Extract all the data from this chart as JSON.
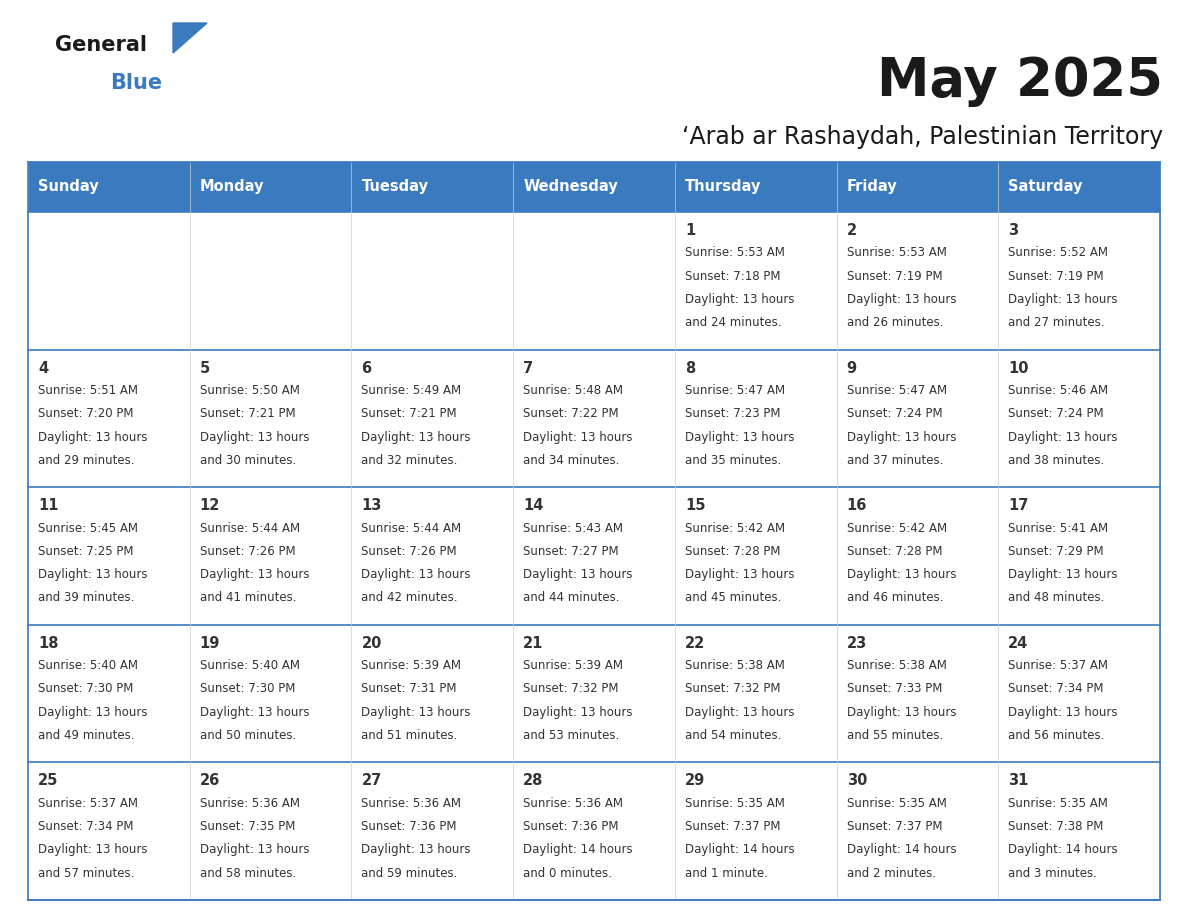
{
  "title": "May 2025",
  "subtitle": "‘Arab ar Rashaydah, Palestinian Territory",
  "header_bg": "#3a7abf",
  "header_text_color": "#ffffff",
  "cell_bg_light": "#efefef",
  "cell_bg_white": "#ffffff",
  "row_sep_color": "#3a7abf",
  "text_color": "#333333",
  "day_headers": [
    "Sunday",
    "Monday",
    "Tuesday",
    "Wednesday",
    "Thursday",
    "Friday",
    "Saturday"
  ],
  "days": [
    {
      "day": 1,
      "col": 4,
      "row": 0,
      "sunrise": "5:53 AM",
      "sunset": "7:18 PM",
      "daylight": "13 hours and 24 minutes."
    },
    {
      "day": 2,
      "col": 5,
      "row": 0,
      "sunrise": "5:53 AM",
      "sunset": "7:19 PM",
      "daylight": "13 hours and 26 minutes."
    },
    {
      "day": 3,
      "col": 6,
      "row": 0,
      "sunrise": "5:52 AM",
      "sunset": "7:19 PM",
      "daylight": "13 hours and 27 minutes."
    },
    {
      "day": 4,
      "col": 0,
      "row": 1,
      "sunrise": "5:51 AM",
      "sunset": "7:20 PM",
      "daylight": "13 hours and 29 minutes."
    },
    {
      "day": 5,
      "col": 1,
      "row": 1,
      "sunrise": "5:50 AM",
      "sunset": "7:21 PM",
      "daylight": "13 hours and 30 minutes."
    },
    {
      "day": 6,
      "col": 2,
      "row": 1,
      "sunrise": "5:49 AM",
      "sunset": "7:21 PM",
      "daylight": "13 hours and 32 minutes."
    },
    {
      "day": 7,
      "col": 3,
      "row": 1,
      "sunrise": "5:48 AM",
      "sunset": "7:22 PM",
      "daylight": "13 hours and 34 minutes."
    },
    {
      "day": 8,
      "col": 4,
      "row": 1,
      "sunrise": "5:47 AM",
      "sunset": "7:23 PM",
      "daylight": "13 hours and 35 minutes."
    },
    {
      "day": 9,
      "col": 5,
      "row": 1,
      "sunrise": "5:47 AM",
      "sunset": "7:24 PM",
      "daylight": "13 hours and 37 minutes."
    },
    {
      "day": 10,
      "col": 6,
      "row": 1,
      "sunrise": "5:46 AM",
      "sunset": "7:24 PM",
      "daylight": "13 hours and 38 minutes."
    },
    {
      "day": 11,
      "col": 0,
      "row": 2,
      "sunrise": "5:45 AM",
      "sunset": "7:25 PM",
      "daylight": "13 hours and 39 minutes."
    },
    {
      "day": 12,
      "col": 1,
      "row": 2,
      "sunrise": "5:44 AM",
      "sunset": "7:26 PM",
      "daylight": "13 hours and 41 minutes."
    },
    {
      "day": 13,
      "col": 2,
      "row": 2,
      "sunrise": "5:44 AM",
      "sunset": "7:26 PM",
      "daylight": "13 hours and 42 minutes."
    },
    {
      "day": 14,
      "col": 3,
      "row": 2,
      "sunrise": "5:43 AM",
      "sunset": "7:27 PM",
      "daylight": "13 hours and 44 minutes."
    },
    {
      "day": 15,
      "col": 4,
      "row": 2,
      "sunrise": "5:42 AM",
      "sunset": "7:28 PM",
      "daylight": "13 hours and 45 minutes."
    },
    {
      "day": 16,
      "col": 5,
      "row": 2,
      "sunrise": "5:42 AM",
      "sunset": "7:28 PM",
      "daylight": "13 hours and 46 minutes."
    },
    {
      "day": 17,
      "col": 6,
      "row": 2,
      "sunrise": "5:41 AM",
      "sunset": "7:29 PM",
      "daylight": "13 hours and 48 minutes."
    },
    {
      "day": 18,
      "col": 0,
      "row": 3,
      "sunrise": "5:40 AM",
      "sunset": "7:30 PM",
      "daylight": "13 hours and 49 minutes."
    },
    {
      "day": 19,
      "col": 1,
      "row": 3,
      "sunrise": "5:40 AM",
      "sunset": "7:30 PM",
      "daylight": "13 hours and 50 minutes."
    },
    {
      "day": 20,
      "col": 2,
      "row": 3,
      "sunrise": "5:39 AM",
      "sunset": "7:31 PM",
      "daylight": "13 hours and 51 minutes."
    },
    {
      "day": 21,
      "col": 3,
      "row": 3,
      "sunrise": "5:39 AM",
      "sunset": "7:32 PM",
      "daylight": "13 hours and 53 minutes."
    },
    {
      "day": 22,
      "col": 4,
      "row": 3,
      "sunrise": "5:38 AM",
      "sunset": "7:32 PM",
      "daylight": "13 hours and 54 minutes."
    },
    {
      "day": 23,
      "col": 5,
      "row": 3,
      "sunrise": "5:38 AM",
      "sunset": "7:33 PM",
      "daylight": "13 hours and 55 minutes."
    },
    {
      "day": 24,
      "col": 6,
      "row": 3,
      "sunrise": "5:37 AM",
      "sunset": "7:34 PM",
      "daylight": "13 hours and 56 minutes."
    },
    {
      "day": 25,
      "col": 0,
      "row": 4,
      "sunrise": "5:37 AM",
      "sunset": "7:34 PM",
      "daylight": "13 hours and 57 minutes."
    },
    {
      "day": 26,
      "col": 1,
      "row": 4,
      "sunrise": "5:36 AM",
      "sunset": "7:35 PM",
      "daylight": "13 hours and 58 minutes."
    },
    {
      "day": 27,
      "col": 2,
      "row": 4,
      "sunrise": "5:36 AM",
      "sunset": "7:36 PM",
      "daylight": "13 hours and 59 minutes."
    },
    {
      "day": 28,
      "col": 3,
      "row": 4,
      "sunrise": "5:36 AM",
      "sunset": "7:36 PM",
      "daylight": "14 hours and 0 minutes."
    },
    {
      "day": 29,
      "col": 4,
      "row": 4,
      "sunrise": "5:35 AM",
      "sunset": "7:37 PM",
      "daylight": "14 hours and 1 minute."
    },
    {
      "day": 30,
      "col": 5,
      "row": 4,
      "sunrise": "5:35 AM",
      "sunset": "7:37 PM",
      "daylight": "14 hours and 2 minutes."
    },
    {
      "day": 31,
      "col": 6,
      "row": 4,
      "sunrise": "5:35 AM",
      "sunset": "7:38 PM",
      "daylight": "14 hours and 3 minutes."
    }
  ],
  "logo_text1": "General",
  "logo_text2": "Blue",
  "logo_text1_color": "#1a1a1a",
  "logo_text2_color": "#3a7abf",
  "logo_triangle_color": "#3a7abf",
  "figsize": [
    11.88,
    9.18
  ],
  "dpi": 100
}
